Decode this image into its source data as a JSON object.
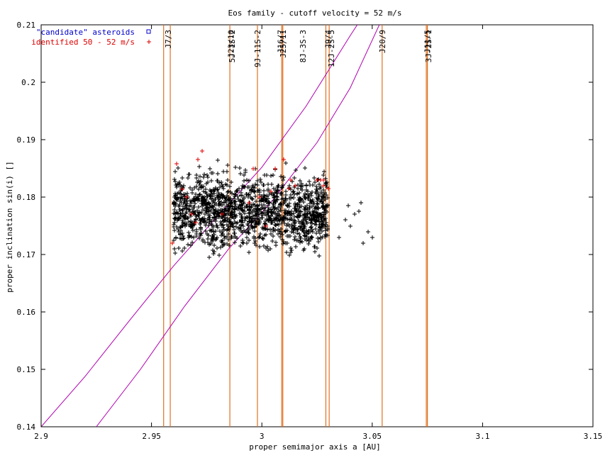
{
  "chart_data": {
    "type": "scatter",
    "title": "Eos family - cutoff velocity = 52 m/s",
    "xlabel": "proper semimajor axis a [AU]",
    "ylabel": "proper inclination sin(i) []",
    "xlim": [
      2.9,
      3.15
    ],
    "ylim": [
      0.14,
      0.21
    ],
    "x_ticks": [
      "2.9",
      "2.95",
      "3",
      "3.05",
      "3.1",
      "3.15"
    ],
    "y_ticks": [
      "0.14",
      "0.15",
      "0.16",
      "0.17",
      "0.18",
      "0.19",
      "0.2",
      "0.21"
    ],
    "grid": false,
    "legend_position": "top-left",
    "legend": [
      {
        "label": "\"candidate\" asteroids",
        "color": "#0000cc",
        "marker": "square"
      },
      {
        "label": "identified 50 - 52 m/s",
        "color": "#dd0000",
        "marker": "plus"
      }
    ],
    "resonances": [
      {
        "label": "J7/3",
        "a": 2.9575
      },
      {
        "label": "J23/10",
        "a": 2.986
      },
      {
        "label": "5J-1S-2",
        "a": 2.9865
      },
      {
        "label": "9J-11S-2",
        "a": 2.998
      },
      {
        "label": "J16/7",
        "a": 3.0085
      },
      {
        "label": "J25/11",
        "a": 3.0095
      },
      {
        "label": "8J-3S-3",
        "a": 3.0185
      },
      {
        "label": "J9/4",
        "a": 3.03
      },
      {
        "label": "12J-2S-5",
        "a": 3.0315
      },
      {
        "label": "J20/9",
        "a": 3.0545
      },
      {
        "label": "J11/5",
        "a": 3.075
      },
      {
        "label": "3J-2S-1",
        "a": 3.0755
      }
    ],
    "resonance_lines_a": [
      2.9555,
      2.9585,
      2.9855,
      2.998,
      3.009,
      3.0095,
      3.029,
      3.0305,
      3.0545,
      3.0745,
      3.075
    ],
    "secular_curves": [
      {
        "x": [
          2.9,
          2.92,
          2.94,
          2.96,
          2.98,
          3.0,
          3.02,
          3.04,
          3.05
        ],
        "y": [
          0.14,
          0.1488,
          0.1585,
          0.168,
          0.1767,
          0.1852,
          0.1958,
          0.2081,
          0.214
        ]
      },
      {
        "x": [
          2.925,
          2.945,
          2.965,
          2.985,
          3.005,
          3.025,
          3.04,
          3.055
        ],
        "y": [
          0.14,
          0.15,
          0.161,
          0.171,
          0.1795,
          0.1895,
          0.199,
          0.2115
        ]
      }
    ],
    "candidate_asteroids": {
      "a_min": 2.96,
      "a_max": 3.03,
      "sini_min": 0.1625,
      "sini_max": 0.194,
      "outliers": [
        [
          3.035,
          0.173
        ],
        [
          3.038,
          0.176
        ],
        [
          3.04,
          0.175
        ],
        [
          3.042,
          0.177
        ],
        [
          3.045,
          0.179
        ],
        [
          3.048,
          0.174
        ],
        [
          3.05,
          0.173
        ],
        [
          3.046,
          0.172
        ],
        [
          3.044,
          0.1775
        ],
        [
          3.039,
          0.1785
        ]
      ]
    },
    "identified_50_52": [
      [
        2.9595,
        0.172
      ],
      [
        2.9615,
        0.1858
      ],
      [
        2.964,
        0.1813
      ],
      [
        2.966,
        0.18
      ],
      [
        2.968,
        0.177
      ],
      [
        2.97,
        0.1755
      ],
      [
        2.971,
        0.1865
      ],
      [
        2.973,
        0.188
      ],
      [
        2.999,
        0.18
      ],
      [
        3.004,
        0.181
      ],
      [
        3.006,
        0.185
      ],
      [
        3.01,
        0.1865
      ],
      [
        3.012,
        0.1815
      ],
      [
        3.013,
        0.183
      ],
      [
        3.015,
        0.182
      ],
      [
        3.025,
        0.183
      ],
      [
        3.0265,
        0.183
      ],
      [
        3.028,
        0.183
      ],
      [
        3.03,
        0.1815
      ],
      [
        3.028,
        0.182
      ],
      [
        2.996,
        0.185
      ],
      [
        2.982,
        0.177
      ],
      [
        3.002,
        0.175
      ],
      [
        2.994,
        0.179
      ]
    ],
    "colors": {
      "resonance": "#e07020",
      "secular": "#b000b0",
      "points": "#000000",
      "identified": "#dd0000"
    }
  }
}
